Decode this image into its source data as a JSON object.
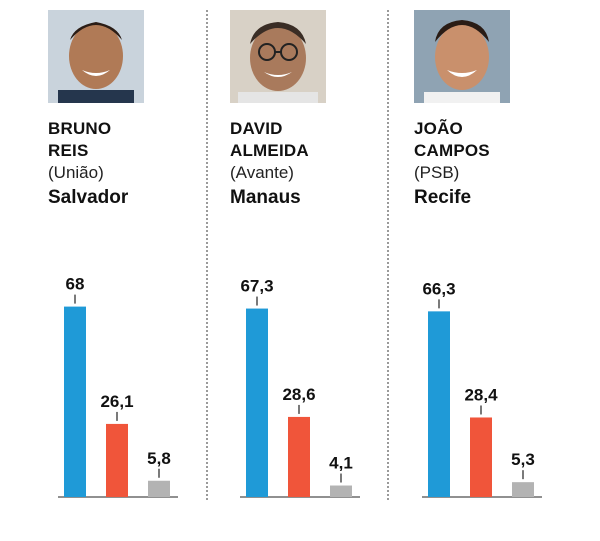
{
  "colors": {
    "blue": "#1f9ad7",
    "red": "#f0553a",
    "gray": "#b3b3b3",
    "divider": "#9a9a9a"
  },
  "candidates": [
    {
      "name_line1": "BRUNO",
      "name_line2": "REIS",
      "party": "(União)",
      "city": "Salvador",
      "photo_icon": "candidate-portrait-icon"
    },
    {
      "name_line1": "DAVID",
      "name_line2": "ALMEIDA",
      "party": "(Avante)",
      "city": "Manaus",
      "photo_icon": "candidate-portrait-icon"
    },
    {
      "name_line1": "JOÃO",
      "name_line2": "CAMPOS",
      "party": "(PSB)",
      "city": "Recife",
      "photo_icon": "candidate-portrait-icon"
    }
  ],
  "chart_data": [
    {
      "type": "bar",
      "categories": [
        "",
        "",
        ""
      ],
      "values": [
        68,
        26.1,
        5.8
      ],
      "labels": [
        "68",
        "26,1",
        "5,8"
      ],
      "ylim": [
        0,
        75
      ],
      "bar_colors": [
        "#1f9ad7",
        "#f0553a",
        "#b3b3b3"
      ]
    },
    {
      "type": "bar",
      "categories": [
        "",
        "",
        ""
      ],
      "values": [
        67.3,
        28.6,
        4.1
      ],
      "labels": [
        "67,3",
        "28,6",
        "4,1"
      ],
      "ylim": [
        0,
        75
      ],
      "bar_colors": [
        "#1f9ad7",
        "#f0553a",
        "#b3b3b3"
      ]
    },
    {
      "type": "bar",
      "categories": [
        "",
        "",
        ""
      ],
      "values": [
        66.3,
        28.4,
        5.3
      ],
      "labels": [
        "66,3",
        "28,4",
        "5,3"
      ],
      "ylim": [
        0,
        75
      ],
      "bar_colors": [
        "#1f9ad7",
        "#f0553a",
        "#b3b3b3"
      ]
    }
  ]
}
